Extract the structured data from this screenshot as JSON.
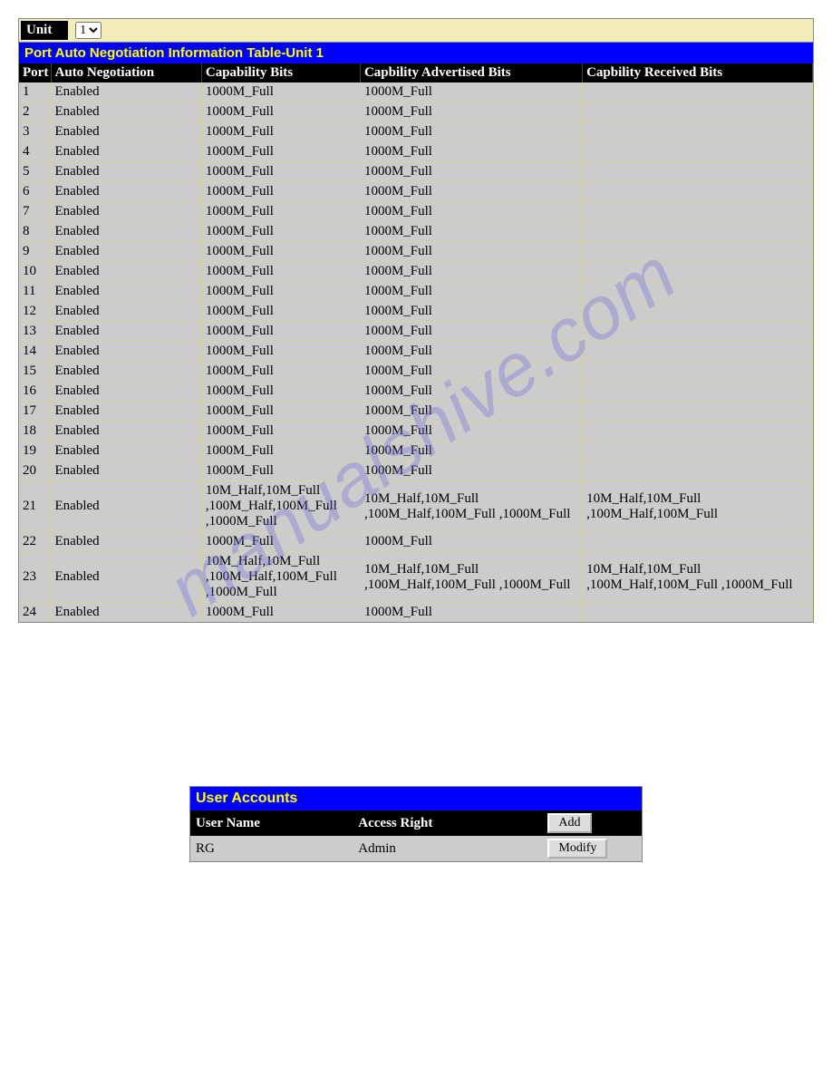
{
  "unit_bar": {
    "label": "Unit",
    "selected": "1",
    "options": [
      "1"
    ]
  },
  "neg_table": {
    "title": "Port Auto Negotiation Information Table-Unit 1",
    "columns": [
      "Port",
      "Auto Negotiation",
      "Capability Bits",
      "Capbility Advertised Bits",
      "Capbility Received Bits"
    ],
    "col_widths": [
      "4%",
      "19%",
      "20%",
      "28%",
      "29%"
    ],
    "rows": [
      {
        "port": "1",
        "auto": "Enabled",
        "cap": "1000M_Full",
        "adv": "1000M_Full",
        "rec": ""
      },
      {
        "port": "2",
        "auto": "Enabled",
        "cap": "1000M_Full",
        "adv": "1000M_Full",
        "rec": ""
      },
      {
        "port": "3",
        "auto": "Enabled",
        "cap": "1000M_Full",
        "adv": "1000M_Full",
        "rec": ""
      },
      {
        "port": "4",
        "auto": "Enabled",
        "cap": "1000M_Full",
        "adv": "1000M_Full",
        "rec": ""
      },
      {
        "port": "5",
        "auto": "Enabled",
        "cap": "1000M_Full",
        "adv": "1000M_Full",
        "rec": ""
      },
      {
        "port": "6",
        "auto": "Enabled",
        "cap": "1000M_Full",
        "adv": "1000M_Full",
        "rec": ""
      },
      {
        "port": "7",
        "auto": "Enabled",
        "cap": "1000M_Full",
        "adv": "1000M_Full",
        "rec": ""
      },
      {
        "port": "8",
        "auto": "Enabled",
        "cap": "1000M_Full",
        "adv": "1000M_Full",
        "rec": ""
      },
      {
        "port": "9",
        "auto": "Enabled",
        "cap": "1000M_Full",
        "adv": "1000M_Full",
        "rec": ""
      },
      {
        "port": "10",
        "auto": "Enabled",
        "cap": "1000M_Full",
        "adv": "1000M_Full",
        "rec": ""
      },
      {
        "port": "11",
        "auto": "Enabled",
        "cap": "1000M_Full",
        "adv": "1000M_Full",
        "rec": ""
      },
      {
        "port": "12",
        "auto": "Enabled",
        "cap": "1000M_Full",
        "adv": "1000M_Full",
        "rec": ""
      },
      {
        "port": "13",
        "auto": "Enabled",
        "cap": "1000M_Full",
        "adv": "1000M_Full",
        "rec": ""
      },
      {
        "port": "14",
        "auto": "Enabled",
        "cap": "1000M_Full",
        "adv": "1000M_Full",
        "rec": ""
      },
      {
        "port": "15",
        "auto": "Enabled",
        "cap": "1000M_Full",
        "adv": "1000M_Full",
        "rec": ""
      },
      {
        "port": "16",
        "auto": "Enabled",
        "cap": "1000M_Full",
        "adv": "1000M_Full",
        "rec": ""
      },
      {
        "port": "17",
        "auto": "Enabled",
        "cap": "1000M_Full",
        "adv": "1000M_Full",
        "rec": ""
      },
      {
        "port": "18",
        "auto": "Enabled",
        "cap": "1000M_Full",
        "adv": "1000M_Full",
        "rec": ""
      },
      {
        "port": "19",
        "auto": "Enabled",
        "cap": "1000M_Full",
        "adv": "1000M_Full",
        "rec": ""
      },
      {
        "port": "20",
        "auto": "Enabled",
        "cap": "1000M_Full",
        "adv": "1000M_Full",
        "rec": ""
      },
      {
        "port": "21",
        "auto": "Enabled",
        "cap": "10M_Half,10M_Full ,100M_Half,100M_Full ,1000M_Full",
        "adv": "10M_Half,10M_Full ,100M_Half,100M_Full ,1000M_Full",
        "rec": "10M_Half,10M_Full ,100M_Half,100M_Full"
      },
      {
        "port": "22",
        "auto": "Enabled",
        "cap": "1000M_Full",
        "adv": "1000M_Full",
        "rec": ""
      },
      {
        "port": "23",
        "auto": "Enabled",
        "cap": "10M_Half,10M_Full ,100M_Half,100M_Full ,1000M_Full",
        "adv": "10M_Half,10M_Full ,100M_Half,100M_Full ,1000M_Full",
        "rec": "10M_Half,10M_Full ,100M_Half,100M_Full ,1000M_Full"
      },
      {
        "port": "24",
        "auto": "Enabled",
        "cap": "1000M_Full",
        "adv": "1000M_Full",
        "rec": ""
      }
    ]
  },
  "user_accounts": {
    "title": "User Accounts",
    "columns": [
      "User Name",
      "Access Right"
    ],
    "add_label": "Add",
    "modify_label": "Modify",
    "rows": [
      {
        "user": "RG",
        "access": "Admin"
      }
    ]
  },
  "watermark": "manualshive.com",
  "colors": {
    "titlebar_bg": "#0000ff",
    "titlebar_fg": "#ffff00",
    "header_bg": "#000000",
    "header_fg": "#ffffff",
    "cell_bg": "#cccccc",
    "unit_row_bg": "#f3edb9",
    "row_border": "#d8d2a0"
  }
}
